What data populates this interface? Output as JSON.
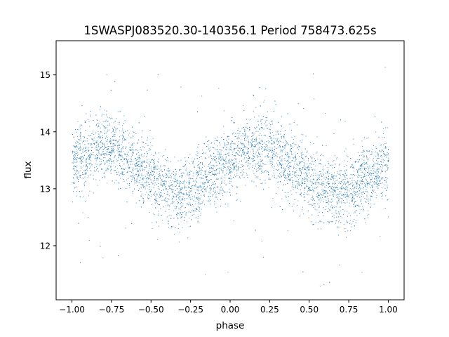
{
  "chart_data": {
    "type": "scatter",
    "title": "1SWASPJ083520.30-140356.1 Period 758473.625s",
    "xlabel": "phase",
    "ylabel": "flux",
    "xlim": [
      -1.1,
      1.1
    ],
    "ylim": [
      11.05,
      15.6
    ],
    "xticks": [
      -1.0,
      -0.75,
      -0.5,
      -0.25,
      0.0,
      0.25,
      0.5,
      0.75,
      1.0
    ],
    "xtick_labels": [
      "−1.00",
      "−0.75",
      "−0.50",
      "−0.25",
      "0.00",
      "0.25",
      "0.50",
      "0.75",
      "1.00"
    ],
    "yticks": [
      12,
      13,
      14,
      15
    ],
    "ytick_labels": [
      "12",
      "13",
      "14",
      "15"
    ],
    "grid": false,
    "marker_color": "#1f77b4",
    "series": [
      {
        "description": "phase-folded light curve (dense scatter, approx. mean trend shown)",
        "trend_x": [
          -1.0,
          -0.9,
          -0.8,
          -0.75,
          -0.7,
          -0.6,
          -0.5,
          -0.45,
          -0.4,
          -0.3,
          -0.25,
          -0.2,
          -0.1,
          0.0,
          0.1,
          0.2,
          0.25,
          0.3,
          0.4,
          0.5,
          0.55,
          0.6,
          0.7,
          0.75,
          0.8,
          0.9,
          1.0
        ],
        "trend_y": [
          13.45,
          13.65,
          13.72,
          13.75,
          13.65,
          13.45,
          13.2,
          13.05,
          13.0,
          12.85,
          12.95,
          13.05,
          13.3,
          13.5,
          13.68,
          13.72,
          13.7,
          13.6,
          13.4,
          13.2,
          13.05,
          13.0,
          12.92,
          12.95,
          13.05,
          13.25,
          13.45
        ],
        "spread": 0.3
      }
    ]
  }
}
